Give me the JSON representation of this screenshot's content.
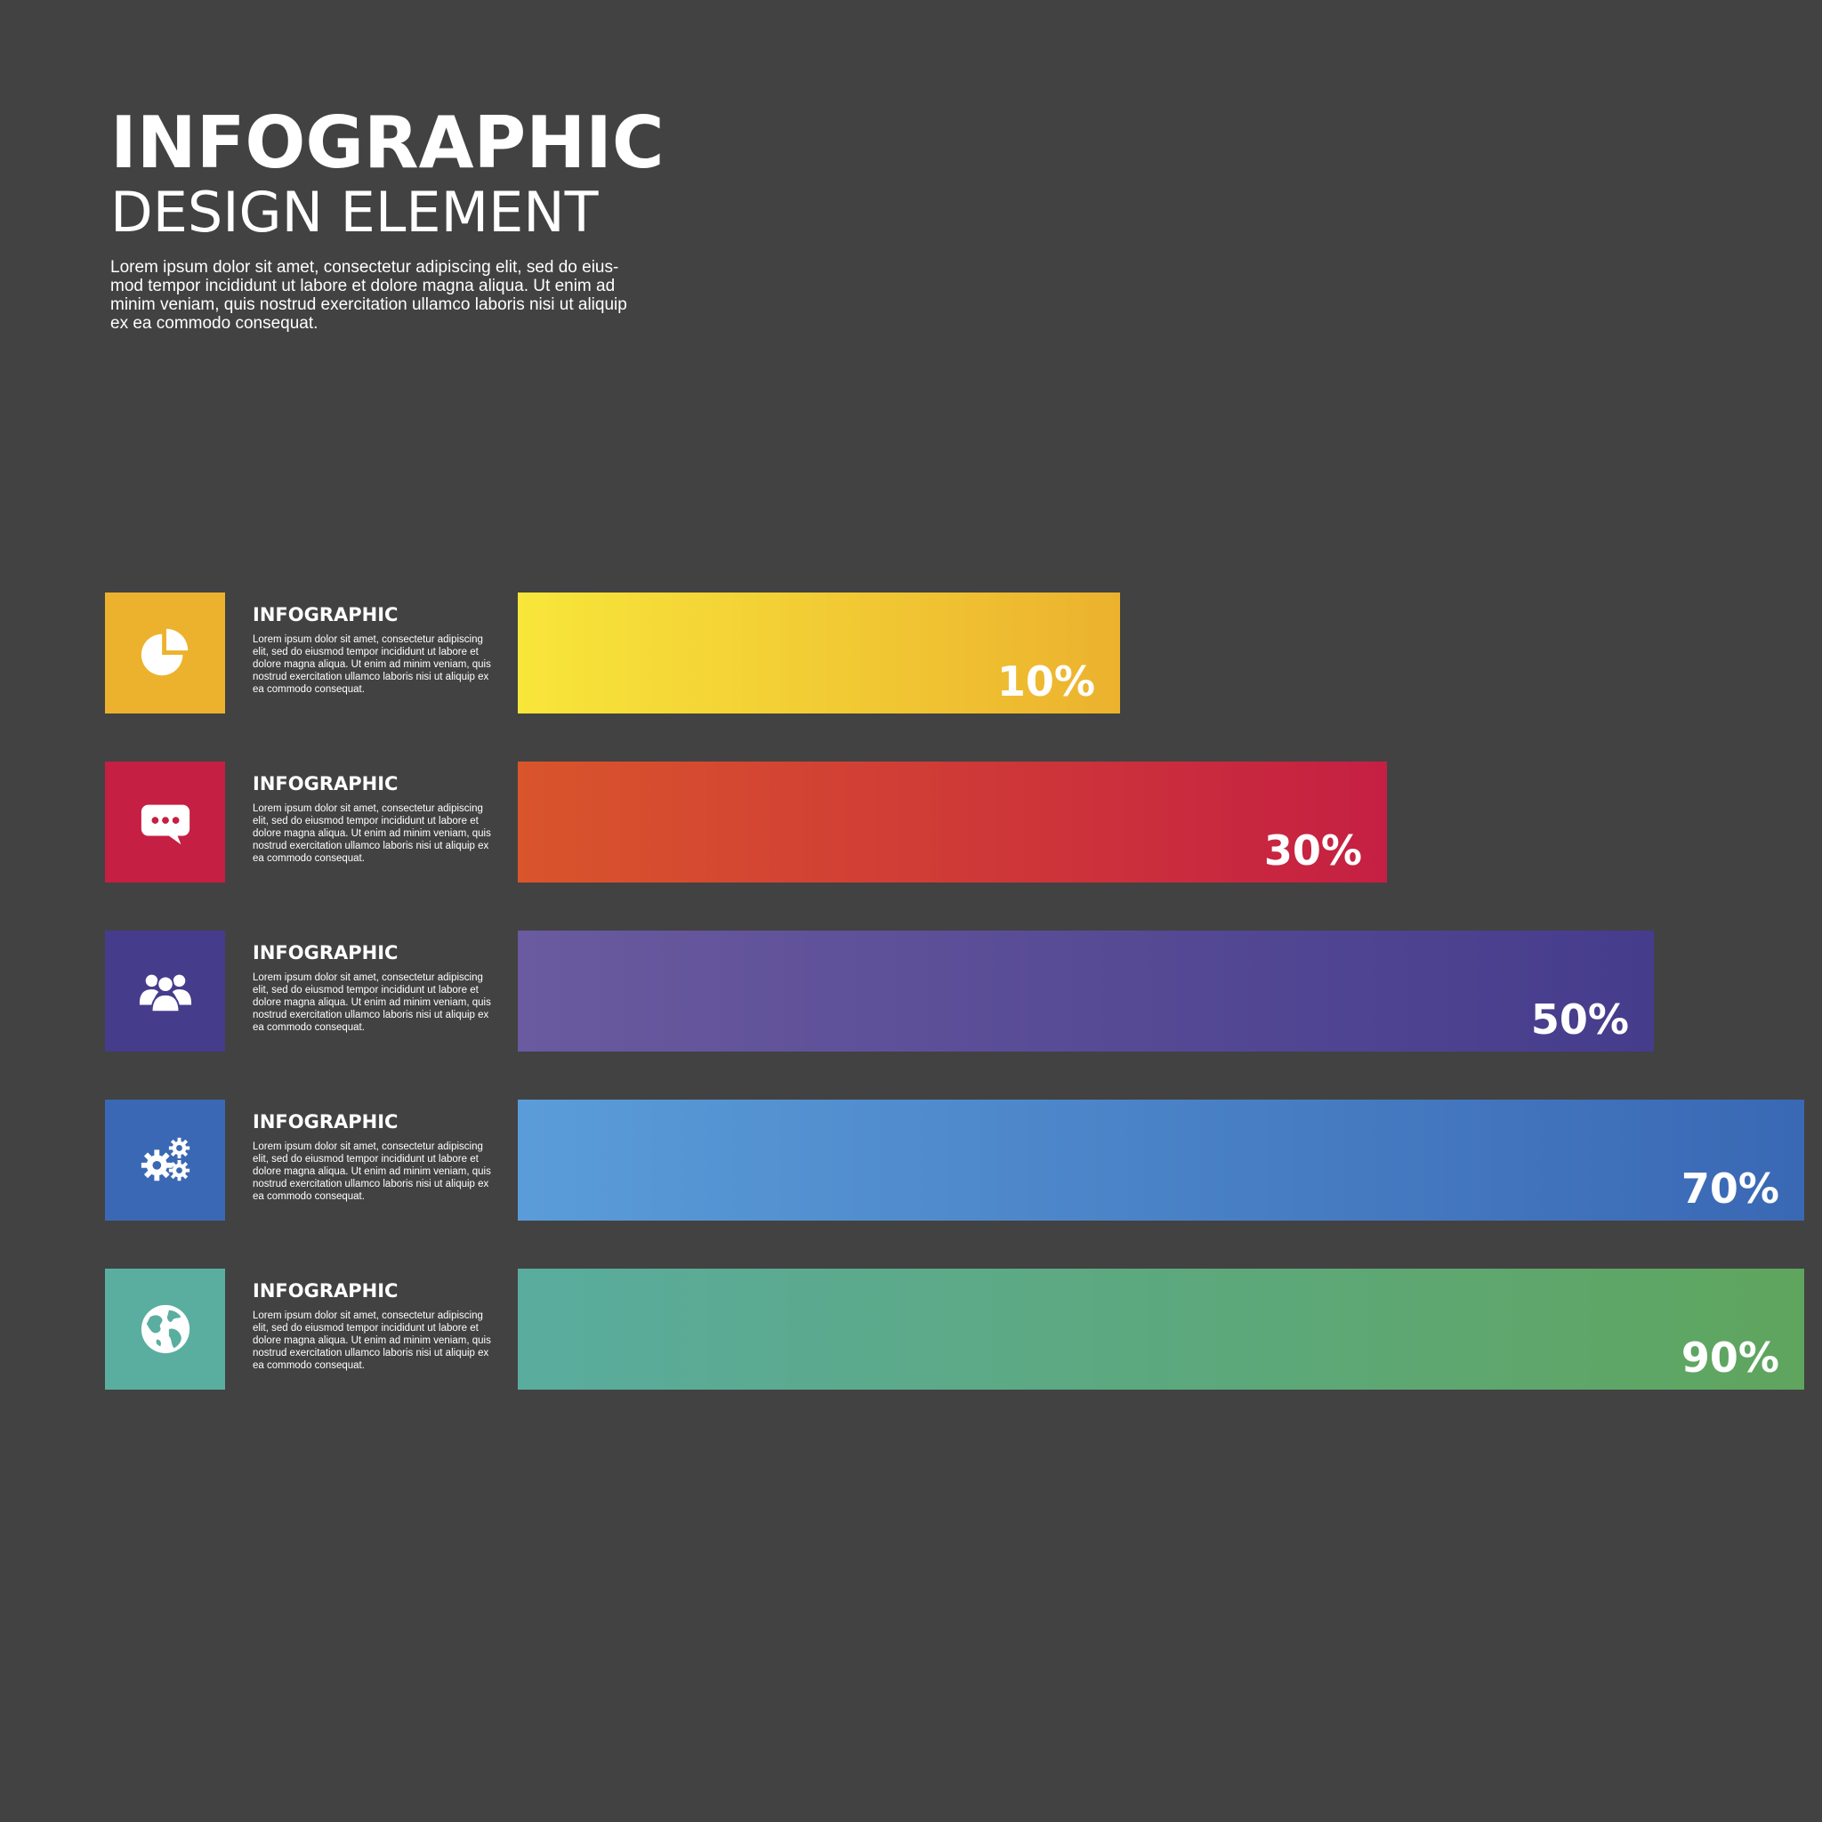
{
  "header": {
    "title": "INFOGRAPHIC",
    "subtitle": "DESIGN ELEMENT",
    "intro": "Lorem ipsum dolor sit amet, consectetur adipiscing elit, sed do eius­mod tempor incididunt ut labore et dolore magna aliqua. Ut enim ad minim veniam, quis nostrud exercitation ullamco laboris nisi ut aliquip ex ea commodo consequat."
  },
  "chart_data": {
    "type": "bar",
    "orientation": "horizontal",
    "title": "INFOGRAPHIC DESIGN ELEMENT",
    "categories": [
      "INFOGRAPHIC",
      "INFOGRAPHIC",
      "INFOGRAPHIC",
      "INFOGRAPHIC",
      "INFOGRAPHIC"
    ],
    "values": [
      10,
      30,
      50,
      70,
      90
    ],
    "value_labels": [
      "10%",
      "30%",
      "50%",
      "70%",
      "90%"
    ],
    "xlim": [
      0,
      100
    ],
    "grid": false,
    "legend": "none"
  },
  "rows": [
    {
      "label": "INFOGRAPHIC",
      "description": "Lorem ipsum dolor sit amet, consectetur adipiscing elit, sed do eiusmod tempor incididunt ut labore et dolore magna aliqua. Ut enim ad minim veniam, quis nostrud exercitation ullamco laboris nisi ut aliquip ex ea commodo consequat.",
      "percent_label": "10%",
      "icon": "pie-chart-icon",
      "color": "#ecb22e",
      "gradient": [
        "#f8e63a",
        "#ecb22e"
      ]
    },
    {
      "label": "INFOGRAPHIC",
      "description": "Lorem ipsum dolor sit amet, consectetur adipiscing elit, sed do eiusmod tempor incididunt ut labore et dolore magna aliqua. Ut enim ad minim veniam, quis nostrud exercitation ullamco laboris nisi ut aliquip ex ea commodo consequat.",
      "percent_label": "30%",
      "icon": "chat-bubble-icon",
      "color": "#c51f43",
      "gradient": [
        "#d9552b",
        "#c51f43"
      ]
    },
    {
      "label": "INFOGRAPHIC",
      "description": "Lorem ipsum dolor sit amet, consectetur adipiscing elit, sed do eiusmod tempor incididunt ut labore et dolore magna aliqua. Ut enim ad minim veniam, quis nostrud exercitation ullamco laboris nisi ut aliquip ex ea commodo consequat.",
      "percent_label": "50%",
      "icon": "people-group-icon",
      "color": "#453c8c",
      "gradient": [
        "#6a5a9f",
        "#453c8c"
      ]
    },
    {
      "label": "INFOGRAPHIC",
      "description": "Lorem ipsum dolor sit amet, consectetur adipiscing elit, sed do eiusmod tempor incididunt ut labore et dolore magna aliqua. Ut enim ad minim veniam, quis nostrud exercitation ullamco laboris nisi ut aliquip ex ea commodo consequat.",
      "percent_label": "70%",
      "icon": "gears-icon",
      "color": "#3a68b4",
      "gradient": [
        "#5a9cd9",
        "#3a68b4"
      ]
    },
    {
      "label": "INFOGRAPHIC",
      "description": "Lorem ipsum dolor sit amet, consectetur adipiscing elit, sed do eiusmod tempor incididunt ut labore et dolore magna aliqua. Ut enim ad minim veniam, quis nostrud exercitation ullamco laboris nisi ut aliquip ex ea commodo consequat.",
      "percent_label": "90%",
      "icon": "globe-icon",
      "color": "#5aaea0",
      "gradient": [
        "#5aac9e",
        "#5fa55e"
      ]
    }
  ]
}
